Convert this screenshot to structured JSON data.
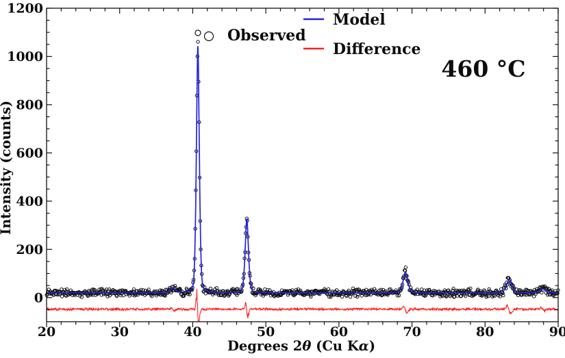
{
  "chart_data": {
    "type": "scatter",
    "title": "",
    "xlabel": "Degrees 2θ (Cu Kα)",
    "ylabel": "Intensity (counts)",
    "xlim": [
      20,
      90
    ],
    "ylim": [
      -100,
      1200
    ],
    "x_major_ticks": [
      20,
      30,
      40,
      50,
      60,
      70,
      80,
      90
    ],
    "x_minor_step": 2,
    "y_major_ticks": [
      0,
      200,
      400,
      600,
      800,
      1000,
      1200
    ],
    "y_minor_step": 50,
    "grid": false,
    "legend_position": "top-center",
    "annotation": "460 °C",
    "legend": [
      {
        "label": "Observed",
        "marker": "open-circles",
        "color": "#111111"
      },
      {
        "label": "Model",
        "marker": "line",
        "color": "#2222dd"
      },
      {
        "label": "Difference",
        "marker": "line",
        "color": "#ff1f1f"
      }
    ],
    "colors": {
      "model": "#2222dd",
      "difference": "#ff1f1f",
      "observed": "#111111"
    },
    "background_counts": 20,
    "difference_offset": -48,
    "difference_noise_counts": 7,
    "observed_noise_counts": 14,
    "peaks": [
      {
        "two_theta": 37.3,
        "model_height": 20,
        "width": 0.35,
        "diff_amp": 6,
        "observed_max": 45
      },
      {
        "two_theta": 40.7,
        "model_height": 1025,
        "width": 0.22,
        "diff_amp": 70,
        "observed_max": 1050
      },
      {
        "two_theta": 47.4,
        "model_height": 306,
        "width": 0.25,
        "diff_amp": 24,
        "observed_max": 370
      },
      {
        "two_theta": 69.1,
        "model_height": 85,
        "width": 0.35,
        "diff_amp": 14,
        "observed_max": 120
      },
      {
        "two_theta": 83.3,
        "model_height": 55,
        "width": 0.4,
        "diff_amp": 16,
        "observed_max": 92
      },
      {
        "two_theta": 87.9,
        "model_height": 16,
        "width": 0.45,
        "diff_amp": 6,
        "observed_max": 42
      }
    ]
  }
}
